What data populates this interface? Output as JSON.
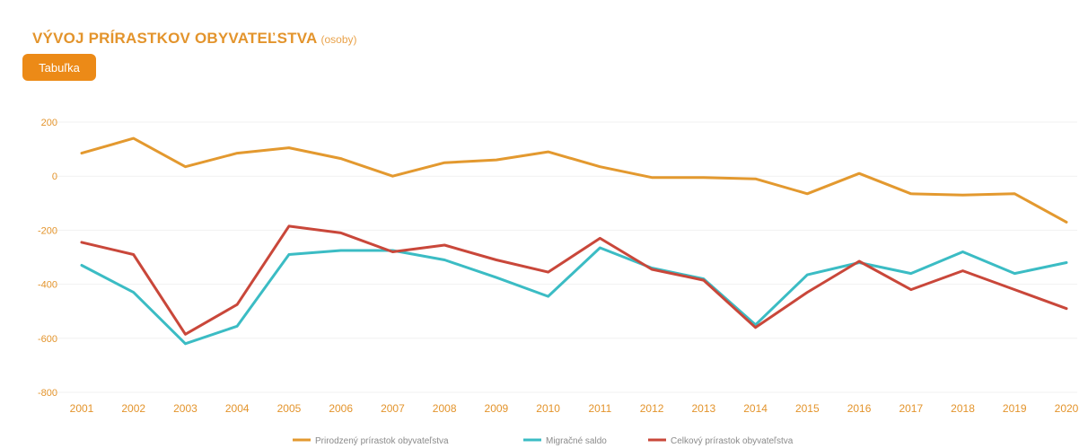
{
  "header": {
    "title": "VÝVOJ PRÍRASTKOV OBYVATEĽSTVA",
    "subtitle": "(osoby)",
    "table_button_label": "Tabuľka"
  },
  "colors": {
    "accent": "#ec8a17",
    "natural": "#e3992f",
    "migration": "#3bbcc4",
    "total": "#c9473a",
    "axis_text": "#e3942c"
  },
  "chart_data": {
    "type": "line",
    "title": "VÝVOJ PRÍRASTKOV OBYVATEĽSTVA",
    "subtitle": "(osoby)",
    "x": [
      "2001",
      "2002",
      "2003",
      "2004",
      "2005",
      "2006",
      "2007",
      "2008",
      "2009",
      "2010",
      "2011",
      "2012",
      "2013",
      "2014",
      "2015",
      "2016",
      "2017",
      "2018",
      "2019",
      "2020"
    ],
    "ylim": [
      -800,
      200
    ],
    "yticks": [
      200,
      0,
      -200,
      -400,
      -600,
      -800
    ],
    "grid": true,
    "legend_position": "bottom",
    "series": [
      {
        "name": "Prirodzený prírastok obyvateľstva",
        "color": "#e3992f",
        "values": [
          85,
          140,
          35,
          85,
          105,
          65,
          0,
          50,
          60,
          90,
          35,
          -5,
          -5,
          -10,
          -65,
          10,
          -65,
          -70,
          -65,
          -170
        ]
      },
      {
        "name": "Migračné saldo",
        "color": "#3bbcc4",
        "values": [
          -330,
          -430,
          -620,
          -555,
          -290,
          -275,
          -275,
          -310,
          -375,
          -445,
          -265,
          -340,
          -380,
          -550,
          -365,
          -320,
          -360,
          -280,
          -360,
          -320
        ]
      },
      {
        "name": "Celkový prírastok obyvateľstva",
        "color": "#c9473a",
        "values": [
          -245,
          -290,
          -585,
          -475,
          -185,
          -210,
          -280,
          -255,
          -310,
          -355,
          -230,
          -345,
          -385,
          -560,
          -430,
          -315,
          -420,
          -350,
          -420,
          -490
        ]
      }
    ]
  }
}
